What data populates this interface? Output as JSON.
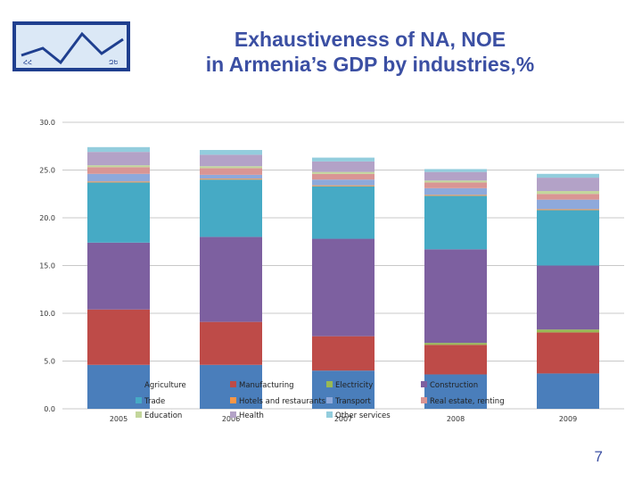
{
  "slide": {
    "title_line1": "Exhaustiveness of NA, NOE",
    "title_line2": "in Armenia’s GDP by industries,%",
    "page_number": "7",
    "logo_text_left": "ՀՀ",
    "logo_text_right": "ԶԵ"
  },
  "chart_data": {
    "type": "bar",
    "stacked": true,
    "categories": [
      "2005",
      "2006",
      "2007",
      "2008",
      "2009"
    ],
    "ylim": [
      0,
      30
    ],
    "yticks": [
      "0.0",
      "5.0",
      "10.0",
      "15.0",
      "20.0",
      "25.0",
      "30.0"
    ],
    "grid": true,
    "legend_position": "bottom-overlay",
    "series": [
      {
        "name": "Agriculture",
        "color": "#4a7ebb",
        "values": [
          4.6,
          4.6,
          4.0,
          3.6,
          3.7
        ]
      },
      {
        "name": "Manufacturing",
        "color": "#be4b48",
        "values": [
          5.8,
          4.5,
          3.6,
          3.1,
          4.3
        ]
      },
      {
        "name": "Electricity",
        "color": "#98b954",
        "values": [
          0.0,
          0.0,
          0.0,
          0.2,
          0.3
        ]
      },
      {
        "name": "Construction",
        "color": "#7d60a0",
        "values": [
          7.0,
          8.9,
          10.2,
          9.8,
          6.7
        ]
      },
      {
        "name": "Trade",
        "color": "#46aac5",
        "values": [
          6.3,
          6.0,
          5.5,
          5.6,
          5.8
        ]
      },
      {
        "name": "Hotels and restaurants",
        "color": "#f79646",
        "values": [
          0.1,
          0.1,
          0.1,
          0.1,
          0.1
        ]
      },
      {
        "name": "Transport",
        "color": "#8ea9db",
        "values": [
          0.8,
          0.4,
          0.6,
          0.7,
          1.0
        ]
      },
      {
        "name": "Real estate, renting",
        "color": "#d99594",
        "values": [
          0.7,
          0.7,
          0.6,
          0.6,
          0.6
        ]
      },
      {
        "name": "Education",
        "color": "#c3d69b",
        "values": [
          0.2,
          0.2,
          0.2,
          0.2,
          0.3
        ]
      },
      {
        "name": "Health",
        "color": "#b3a2c7",
        "values": [
          1.4,
          1.2,
          1.1,
          0.9,
          1.4
        ]
      },
      {
        "name": "Other services",
        "color": "#93cddd",
        "values": [
          0.5,
          0.5,
          0.4,
          0.3,
          0.4
        ]
      }
    ]
  }
}
